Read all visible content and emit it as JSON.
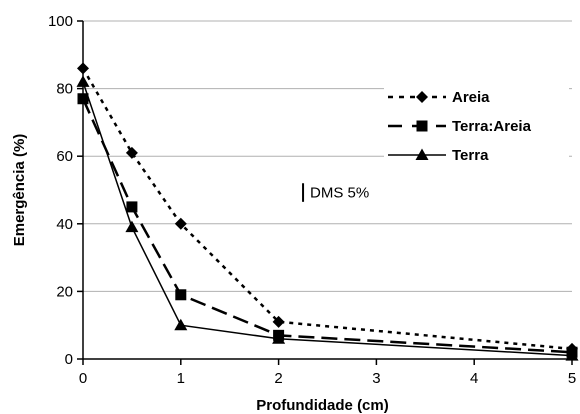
{
  "chart_data": {
    "type": "line",
    "title": "",
    "xlabel": "Profundidade (cm)",
    "ylabel": "Emergência (%)",
    "xlim": [
      0,
      5
    ],
    "ylim": [
      0,
      100
    ],
    "xticks": [
      0,
      1,
      2,
      3,
      4,
      5
    ],
    "yticks": [
      0,
      20,
      40,
      60,
      80,
      100
    ],
    "grid": "horizontal",
    "legend_position": "right",
    "x": [
      0,
      0.5,
      1,
      2,
      5
    ],
    "series": [
      {
        "name": "Areia",
        "values": [
          86,
          61,
          40,
          11,
          3
        ],
        "marker": "diamond",
        "line": "dotted"
      },
      {
        "name": "Terra:Areia",
        "values": [
          77,
          45,
          19,
          7,
          2
        ],
        "marker": "square",
        "line": "dashed"
      },
      {
        "name": "Terra",
        "values": [
          82,
          39,
          10,
          6,
          1
        ],
        "marker": "triangle",
        "line": "solid"
      }
    ],
    "annotation": {
      "label": "DMS 5%",
      "x": 2.25,
      "y_from": 46.5,
      "y_to": 52
    },
    "colors": {
      "line": "#000000",
      "grid": "#b0b0b0"
    }
  }
}
